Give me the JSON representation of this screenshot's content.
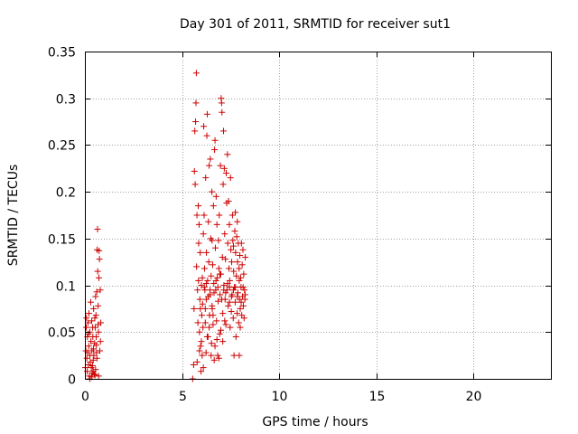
{
  "chart_data": {
    "type": "scatter",
    "title": "Day 301 of 2011, SRMTID for receiver sut1",
    "xlabel": "GPS time / hours",
    "ylabel": "SRMTID / TECUs",
    "xlim": [
      0,
      24
    ],
    "ylim": [
      0,
      0.35
    ],
    "x_ticks": [
      0,
      5,
      10,
      15,
      20
    ],
    "x_tick_labels": [
      "0",
      "5",
      "10",
      "15",
      "20"
    ],
    "y_ticks": [
      0,
      0.05,
      0.1,
      0.15,
      0.2,
      0.25,
      0.3,
      0.35
    ],
    "y_tick_labels": [
      "0",
      "0.05",
      "0.1",
      "0.15",
      "0.2",
      "0.25",
      "0.3",
      "0.35"
    ],
    "grid": true,
    "series": [
      {
        "name": "sut1",
        "marker": "plus",
        "color": "#cc0000",
        "points": [
          [
            0.02,
            0.012
          ],
          [
            0.05,
            0.03
          ],
          [
            0.07,
            0.055
          ],
          [
            0.08,
            0.065
          ],
          [
            0.1,
            0.022
          ],
          [
            0.12,
            0.008
          ],
          [
            0.13,
            0.045
          ],
          [
            0.15,
            0.028
          ],
          [
            0.16,
            0.06
          ],
          [
            0.18,
            0.015
          ],
          [
            0.2,
            0.035
          ],
          [
            0.21,
            0.07
          ],
          [
            0.23,
            0.003
          ],
          [
            0.25,
            0.05
          ],
          [
            0.26,
            0.025
          ],
          [
            0.28,
            0.018
          ],
          [
            0.3,
            0.082
          ],
          [
            0.31,
            0.04
          ],
          [
            0.33,
            0.012
          ],
          [
            0.35,
            0.062
          ],
          [
            0.36,
            0.03
          ],
          [
            0.38,
            0.006
          ],
          [
            0.4,
            0.055
          ],
          [
            0.41,
            0.045
          ],
          [
            0.43,
            0.02
          ],
          [
            0.45,
            0.075
          ],
          [
            0.46,
            0.025
          ],
          [
            0.48,
            0.005
          ],
          [
            0.5,
            0.038
          ],
          [
            0.51,
            0.065
          ],
          [
            0.53,
            0.055
          ],
          [
            0.55,
            0.088
          ],
          [
            0.57,
            0.068
          ],
          [
            0.58,
            0.045
          ],
          [
            0.6,
            0.028
          ],
          [
            0.61,
            0.093
          ],
          [
            0.63,
            0.138
          ],
          [
            0.65,
            0.16
          ],
          [
            0.66,
            0.115
          ],
          [
            0.68,
            0.078
          ],
          [
            0.7,
            0.05
          ],
          [
            0.72,
            0.108
          ],
          [
            0.73,
            0.137
          ],
          [
            0.75,
            0.128
          ],
          [
            0.77,
            0.03
          ],
          [
            0.79,
            0.095
          ],
          [
            0.8,
            0.04
          ],
          [
            0.82,
            0.06
          ],
          [
            0.25,
            0.0
          ],
          [
            0.34,
            0.002
          ],
          [
            0.43,
            0.008
          ],
          [
            0.52,
            0.004
          ],
          [
            0.62,
            0.022
          ],
          [
            0.71,
            0.003
          ],
          [
            0.55,
            0.01
          ],
          [
            0.44,
            0.032
          ],
          [
            0.59,
            0.036
          ],
          [
            0.68,
            0.058
          ],
          [
            0.18,
            0.048
          ],
          [
            0.39,
            0.014
          ],
          [
            5.55,
            0.0
          ],
          [
            5.6,
            0.015
          ],
          [
            5.62,
            0.075
          ],
          [
            5.64,
            0.222
          ],
          [
            5.66,
            0.265
          ],
          [
            5.68,
            0.208
          ],
          [
            5.7,
            0.275
          ],
          [
            5.72,
            0.295
          ],
          [
            5.74,
            0.327
          ],
          [
            5.75,
            0.12
          ],
          [
            5.77,
            0.175
          ],
          [
            5.78,
            0.018
          ],
          [
            5.8,
            0.095
          ],
          [
            5.82,
            0.06
          ],
          [
            5.84,
            0.185
          ],
          [
            5.86,
            0.145
          ],
          [
            5.88,
            0.165
          ],
          [
            5.9,
            0.05
          ],
          [
            5.92,
            0.085
          ],
          [
            5.94,
            0.135
          ],
          [
            5.96,
            0.035
          ],
          [
            5.98,
            0.008
          ],
          [
            6.0,
            0.1
          ],
          [
            6.02,
            0.068
          ],
          [
            6.04,
            0.025
          ],
          [
            6.06,
            0.08
          ],
          [
            6.08,
            0.055
          ],
          [
            6.1,
            0.155
          ],
          [
            6.12,
            0.27
          ],
          [
            6.14,
            0.175
          ],
          [
            6.16,
            0.118
          ],
          [
            6.18,
            0.095
          ],
          [
            6.2,
            0.06
          ],
          [
            6.22,
            0.215
          ],
          [
            6.24,
            0.028
          ],
          [
            6.26,
            0.135
          ],
          [
            6.28,
            0.26
          ],
          [
            6.3,
            0.283
          ],
          [
            6.32,
            0.105
          ],
          [
            6.34,
            0.045
          ],
          [
            6.36,
            0.168
          ],
          [
            6.38,
            0.125
          ],
          [
            6.4,
            0.228
          ],
          [
            6.42,
            0.068
          ],
          [
            6.44,
            0.09
          ],
          [
            6.46,
            0.235
          ],
          [
            6.48,
            0.15
          ],
          [
            6.5,
            0.11
          ],
          [
            6.52,
            0.038
          ],
          [
            6.54,
            0.2
          ],
          [
            6.56,
            0.075
          ],
          [
            6.58,
            0.122
          ],
          [
            6.6,
            0.058
          ],
          [
            6.62,
            0.185
          ],
          [
            6.64,
            0.102
          ],
          [
            6.66,
            0.02
          ],
          [
            6.68,
            0.245
          ],
          [
            6.7,
            0.255
          ],
          [
            6.72,
            0.14
          ],
          [
            6.74,
            0.095
          ],
          [
            6.76,
            0.195
          ],
          [
            6.78,
            0.062
          ],
          [
            6.8,
            0.165
          ],
          [
            6.82,
            0.108
          ],
          [
            6.84,
            0.025
          ],
          [
            6.86,
            0.083
          ],
          [
            6.88,
            0.148
          ],
          [
            6.9,
            0.118
          ],
          [
            6.92,
            0.175
          ],
          [
            6.94,
            0.048
          ],
          [
            6.96,
            0.09
          ],
          [
            6.98,
            0.228
          ],
          [
            7.0,
            0.112
          ],
          [
            7.02,
            0.3
          ],
          [
            7.04,
            0.295
          ],
          [
            7.06,
            0.285
          ],
          [
            7.08,
            0.13
          ],
          [
            7.1,
            0.07
          ],
          [
            7.12,
            0.208
          ],
          [
            7.14,
            0.265
          ],
          [
            7.16,
            0.1
          ],
          [
            7.18,
            0.225
          ],
          [
            7.2,
            0.155
          ],
          [
            7.22,
            0.085
          ],
          [
            7.24,
            0.128
          ],
          [
            7.26,
            0.058
          ],
          [
            7.28,
            0.22
          ],
          [
            7.3,
            0.188
          ],
          [
            7.32,
            0.095
          ],
          [
            7.34,
            0.24
          ],
          [
            7.36,
            0.145
          ],
          [
            7.38,
            0.078
          ],
          [
            7.4,
            0.19
          ],
          [
            7.42,
            0.118
          ],
          [
            7.44,
            0.165
          ],
          [
            7.46,
            0.105
          ],
          [
            7.48,
            0.055
          ],
          [
            7.5,
            0.215
          ],
          [
            7.52,
            0.138
          ],
          [
            7.54,
            0.072
          ],
          [
            7.56,
            0.125
          ],
          [
            7.58,
            0.09
          ],
          [
            7.6,
            0.175
          ],
          [
            7.62,
            0.148
          ],
          [
            7.64,
            0.065
          ],
          [
            7.66,
            0.115
          ],
          [
            7.68,
            0.025
          ],
          [
            7.7,
            0.098
          ],
          [
            7.72,
            0.158
          ],
          [
            7.74,
            0.082
          ],
          [
            7.76,
            0.135
          ],
          [
            7.78,
            0.045
          ],
          [
            7.8,
            0.11
          ],
          [
            7.82,
            0.152
          ],
          [
            7.84,
            0.07
          ],
          [
            7.86,
            0.125
          ],
          [
            7.88,
            0.092
          ],
          [
            7.9,
            0.145
          ],
          [
            7.92,
            0.06
          ],
          [
            7.94,
            0.118
          ],
          [
            7.96,
            0.085
          ],
          [
            7.98,
            0.132
          ],
          [
            8.0,
            0.075
          ],
          [
            8.02,
            0.108
          ],
          [
            8.04,
            0.098
          ],
          [
            8.06,
            0.145
          ],
          [
            8.08,
            0.068
          ],
          [
            8.1,
            0.122
          ],
          [
            8.12,
            0.088
          ],
          [
            8.14,
            0.138
          ],
          [
            8.16,
            0.078
          ],
          [
            8.18,
            0.112
          ],
          [
            8.2,
            0.065
          ],
          [
            8.22,
            0.095
          ],
          [
            8.24,
            0.085
          ],
          [
            8.26,
            0.13
          ],
          [
            5.9,
            0.03
          ],
          [
            6.1,
            0.012
          ],
          [
            6.3,
            0.045
          ],
          [
            6.5,
            0.025
          ],
          [
            6.7,
            0.035
          ],
          [
            6.9,
            0.022
          ],
          [
            7.1,
            0.04
          ],
          [
            6.0,
            0.04
          ],
          [
            6.2,
            0.075
          ],
          [
            6.4,
            0.055
          ],
          [
            6.6,
            0.068
          ],
          [
            6.8,
            0.042
          ],
          [
            7.0,
            0.052
          ],
          [
            7.2,
            0.062
          ],
          [
            6.15,
            0.098
          ],
          [
            6.35,
            0.088
          ],
          [
            6.55,
            0.078
          ],
          [
            6.75,
            0.105
          ],
          [
            6.95,
            0.112
          ],
          [
            7.15,
            0.095
          ],
          [
            7.35,
            0.102
          ],
          [
            7.55,
            0.088
          ],
          [
            7.75,
            0.098
          ],
          [
            7.95,
            0.105
          ],
          [
            8.15,
            0.098
          ],
          [
            6.25,
            0.085
          ],
          [
            6.45,
            0.095
          ],
          [
            6.65,
            0.092
          ],
          [
            6.85,
            0.098
          ],
          [
            7.05,
            0.085
          ],
          [
            7.25,
            0.092
          ],
          [
            7.45,
            0.082
          ],
          [
            7.65,
            0.095
          ],
          [
            7.85,
            0.088
          ],
          [
            8.05,
            0.082
          ],
          [
            8.25,
            0.09
          ],
          [
            5.85,
            0.105
          ],
          [
            6.05,
            0.108
          ],
          [
            6.25,
            0.102
          ],
          [
            7.95,
            0.025
          ],
          [
            8.0,
            0.055
          ],
          [
            7.85,
            0.168
          ],
          [
            7.75,
            0.178
          ],
          [
            5.95,
            0.075
          ],
          [
            6.55,
            0.148
          ],
          [
            7.45,
            0.098
          ],
          [
            7.65,
            0.142
          ]
        ]
      }
    ]
  }
}
